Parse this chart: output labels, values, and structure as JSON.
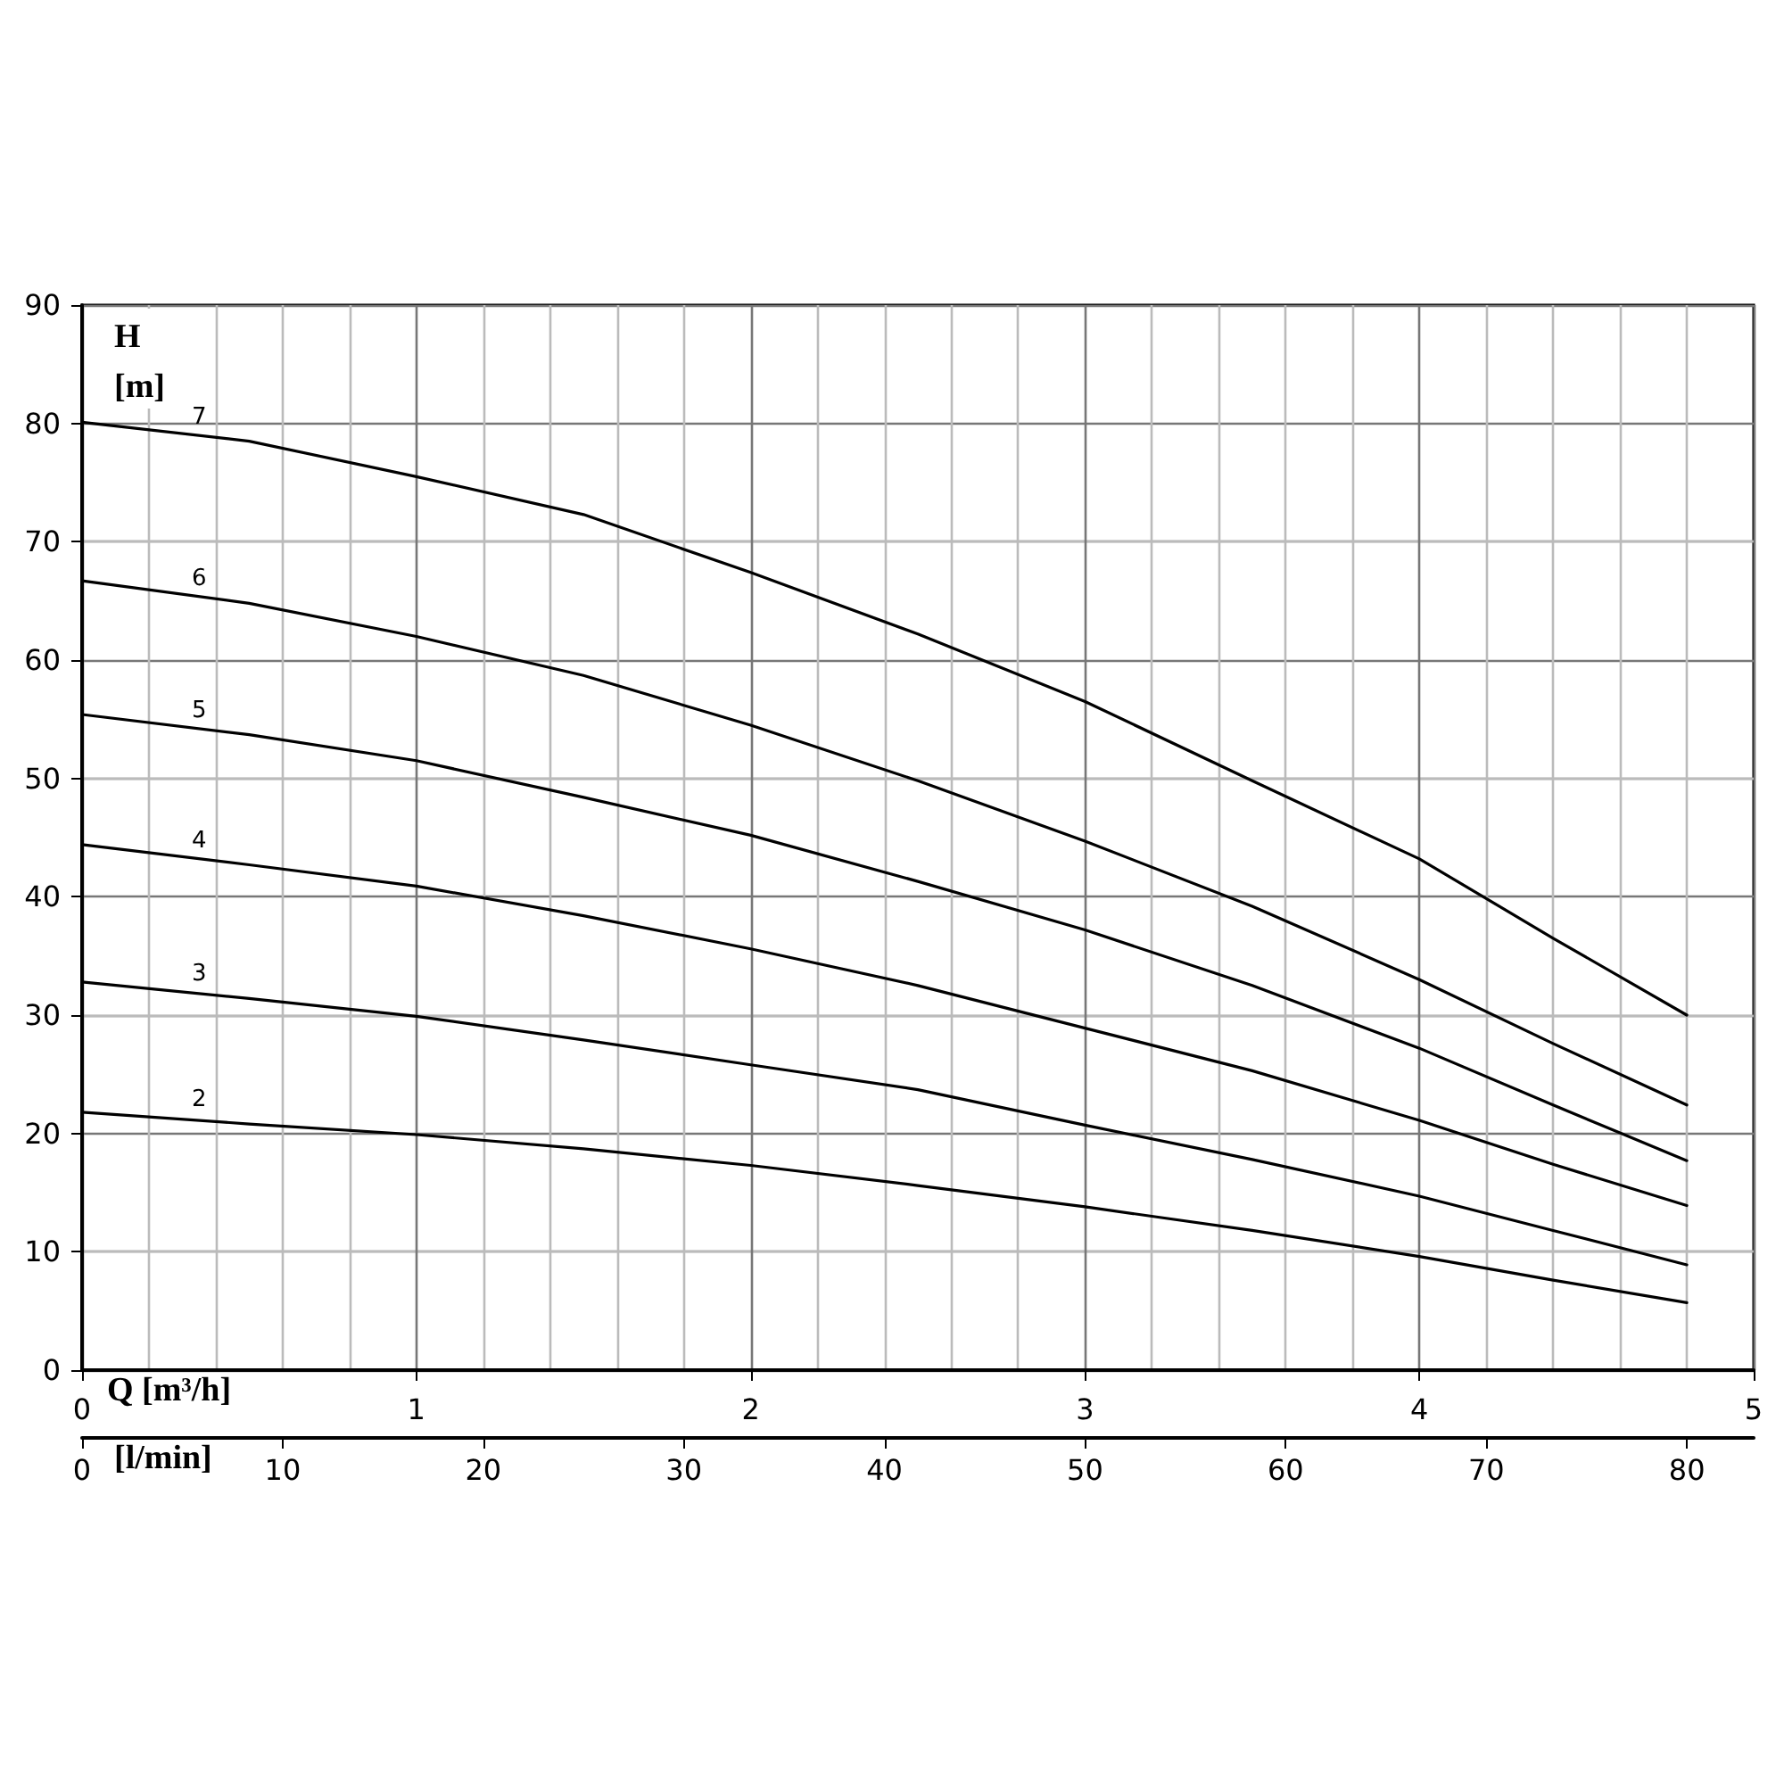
{
  "chart_data": {
    "type": "line",
    "xlabel": "Q [m³/h]",
    "x2label": "[l/min]",
    "ylabel": "H [m]",
    "x": [
      0,
      0.5,
      1,
      1.5,
      2,
      2.5,
      3,
      3.5,
      4,
      4.4,
      4.8
    ],
    "series": [
      {
        "name": "7",
        "color": "#000000",
        "values": [
          80.1,
          78.5,
          75.5,
          72.3,
          67.4,
          62.2,
          56.5,
          49.8,
          43.2,
          36.5,
          30.0
        ]
      },
      {
        "name": "6",
        "color": "#000000",
        "values": [
          66.7,
          64.8,
          62.0,
          58.7,
          54.5,
          49.8,
          44.7,
          39.2,
          33.0,
          27.6,
          22.4
        ]
      },
      {
        "name": "5",
        "color": "#000000",
        "values": [
          55.4,
          53.7,
          51.5,
          48.4,
          45.2,
          41.3,
          37.2,
          32.5,
          27.2,
          22.4,
          17.7
        ]
      },
      {
        "name": "4",
        "color": "#000000",
        "values": [
          44.4,
          42.7,
          40.9,
          38.4,
          35.6,
          32.5,
          28.9,
          25.3,
          21.1,
          17.4,
          13.9
        ]
      },
      {
        "name": "3",
        "color": "#000000",
        "values": [
          32.8,
          31.4,
          29.9,
          27.9,
          25.8,
          23.7,
          20.7,
          17.8,
          14.7,
          11.8,
          8.9
        ]
      },
      {
        "name": "2",
        "color": "#000000",
        "values": [
          21.8,
          20.8,
          19.9,
          18.7,
          17.3,
          15.6,
          13.8,
          11.8,
          9.6,
          7.6,
          5.7
        ]
      }
    ],
    "xlim": [
      0,
      5
    ],
    "xticks": [
      0,
      1,
      2,
      3,
      4,
      5
    ],
    "x2lim": [
      0,
      83.33
    ],
    "x2ticks": [
      0,
      10,
      20,
      30,
      40,
      50,
      60,
      70,
      80
    ],
    "ylim": [
      0,
      90
    ],
    "yticks": [
      0,
      10,
      20,
      30,
      40,
      50,
      60,
      70,
      80,
      90
    ],
    "grid": true,
    "legend": false,
    "marker": "none",
    "line_style": "solid"
  }
}
